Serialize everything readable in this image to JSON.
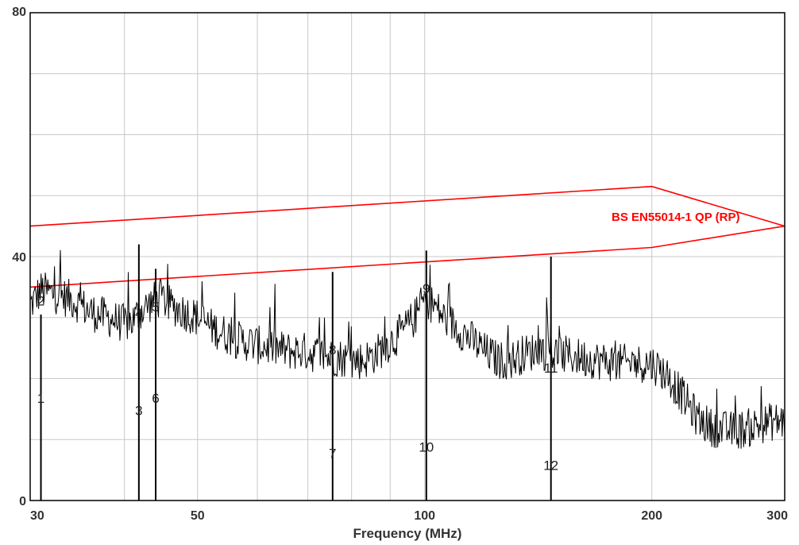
{
  "chart_data": {
    "type": "line",
    "title": "",
    "xlabel": "Frequency (MHz)",
    "ylabel": "",
    "x_scale": "log",
    "xlim": [
      30,
      300
    ],
    "ylim": [
      0,
      80
    ],
    "x_tick_labels": [
      "30",
      "50",
      "100",
      "200",
      "300"
    ],
    "x_ticks": [
      30,
      50,
      100,
      200,
      300
    ],
    "x_minor_grid": [
      40,
      60,
      70,
      80,
      90
    ],
    "y_tick_labels": [
      "0",
      "40",
      "80"
    ],
    "y_ticks": [
      0,
      40,
      80
    ],
    "y_grid": [
      0,
      10,
      20,
      30,
      40,
      50,
      60,
      70,
      80
    ],
    "grid": true,
    "colors": {
      "trace": "#000000",
      "limit": "#ff0000",
      "grid": "#c8c8c8"
    },
    "limit_line": {
      "label": "BS EN55014-1 QP (RP)",
      "upper": {
        "x": [
          30,
          200,
          300
        ],
        "y": [
          45,
          51.5,
          45
        ]
      },
      "lower": {
        "x": [
          30,
          200,
          300
        ],
        "y": [
          35,
          41.5,
          45
        ]
      }
    },
    "spectrum_trace": {
      "x": [
        30,
        31,
        32,
        33,
        34,
        35,
        36,
        37,
        38,
        39,
        40,
        41,
        42,
        43,
        44,
        45,
        46,
        47,
        48,
        50,
        52,
        54,
        56,
        58,
        60,
        63,
        66,
        69,
        72,
        75,
        77,
        80,
        83,
        86,
        90,
        94,
        97,
        100,
        103,
        106,
        110,
        115,
        120,
        125,
        130,
        135,
        140,
        145,
        150,
        160,
        170,
        180,
        190,
        200,
        210,
        220,
        230,
        240,
        250,
        260,
        270,
        280,
        290,
        300
      ],
      "y": [
        32,
        34.5,
        34,
        33.5,
        33,
        32,
        31,
        30.5,
        30,
        29.5,
        29,
        29.5,
        31,
        32,
        33,
        33,
        32,
        31.5,
        31,
        30,
        28.5,
        27.5,
        26.5,
        26,
        25.5,
        25,
        24.5,
        24.5,
        24,
        23.5,
        23.5,
        23,
        23,
        24,
        26,
        28,
        30,
        33,
        32,
        30,
        28.5,
        26.5,
        24.5,
        23,
        23,
        24,
        24.5,
        24.5,
        24,
        23.5,
        23,
        22.5,
        22.5,
        22.5,
        20.5,
        17,
        13.5,
        12,
        11.5,
        11.5,
        12,
        12.5,
        13,
        13
      ]
    },
    "markers": [
      {
        "label": "1",
        "x": 31,
        "y": 16
      },
      {
        "label": "2",
        "x": 31,
        "y": 32
      },
      {
        "label": "3",
        "x": 41.8,
        "y": 14
      },
      {
        "label": "4",
        "x": 41.8,
        "y": 30
      },
      {
        "label": "5",
        "x": 44,
        "y": 31
      },
      {
        "label": "6",
        "x": 44,
        "y": 16
      },
      {
        "label": "7",
        "x": 75.5,
        "y": 7
      },
      {
        "label": "8",
        "x": 75.5,
        "y": 24
      },
      {
        "label": "9",
        "x": 100.5,
        "y": 34
      },
      {
        "label": "10",
        "x": 100.5,
        "y": 8
      },
      {
        "label": "11",
        "x": 147,
        "y": 21
      },
      {
        "label": "12",
        "x": 147,
        "y": 5
      }
    ],
    "marker_lines": [
      {
        "x": 31,
        "y": 30.5
      },
      {
        "x": 41.8,
        "y": 42
      },
      {
        "x": 44,
        "y": 38
      },
      {
        "x": 75.5,
        "y": 37.5
      },
      {
        "x": 100.5,
        "y": 41
      },
      {
        "x": 147,
        "y": 40
      }
    ]
  }
}
